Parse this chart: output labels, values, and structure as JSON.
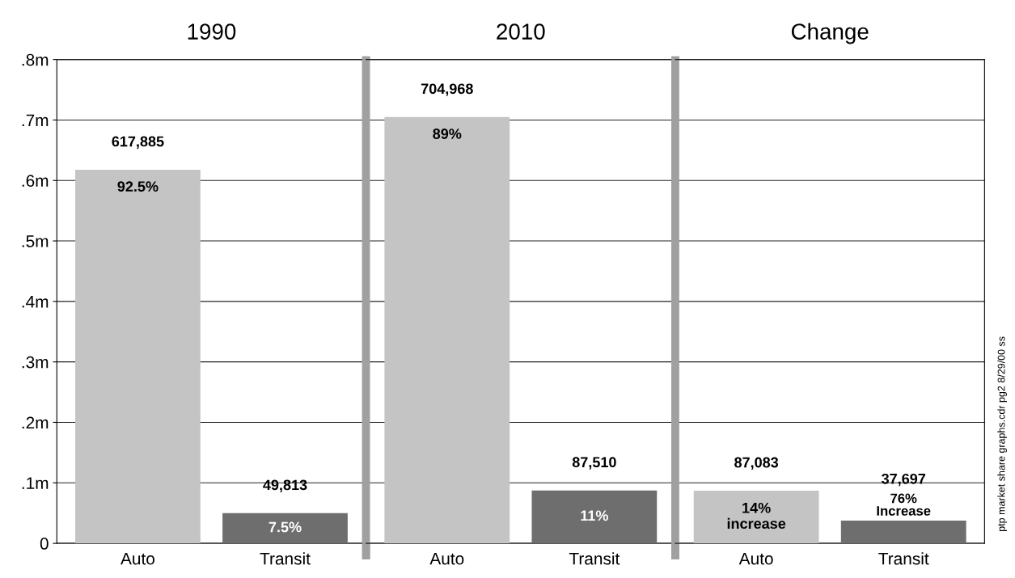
{
  "chart_data": [
    {
      "type": "bar",
      "title": "1990",
      "categories": [
        "Auto",
        "Transit"
      ],
      "values": [
        617885,
        49813
      ],
      "colors": [
        "#c4c4c4",
        "#6e6e6e"
      ],
      "value_labels": [
        "617,885",
        "49,813"
      ],
      "ylim": [
        0,
        800000
      ],
      "yticks": [
        0,
        {
          "value": 100000,
          "label": ".1m"
        },
        {
          "value": 200000,
          "label": ".2m"
        },
        {
          "value": 300000,
          "label": ".3m"
        },
        {
          "value": 400000,
          "label": ".4m"
        },
        {
          "value": 500000,
          "label": ".5m"
        },
        {
          "value": 600000,
          "label": ".6m"
        },
        {
          "value": 700000,
          "label": ".7m"
        },
        {
          "value": 800000,
          "label": ".8m"
        }
      ],
      "grid": "y",
      "annotations": [
        "92.5%",
        "7.5%"
      ]
    },
    {
      "type": "bar",
      "title": "2010",
      "categories": [
        "Auto",
        "Transit"
      ],
      "values": [
        704968,
        87510
      ],
      "colors": [
        "#c4c4c4",
        "#6e6e6e"
      ],
      "value_labels": [
        "704,968",
        "87,510"
      ],
      "ylim": [
        0,
        800000
      ],
      "grid": "y",
      "tick_labels": "x",
      "annotations": [
        "89%",
        "11%"
      ]
    },
    {
      "type": "bar",
      "title": "Change",
      "categories": [
        "Auto",
        "Transit"
      ],
      "values": [
        87083,
        37697
      ],
      "colors": [
        "#c4c4c4",
        "#6e6e6e"
      ],
      "value_labels": [
        "87,083",
        "37,697"
      ],
      "ylim": [
        0,
        800000
      ],
      "grid": "y",
      "tick_labels": "x",
      "annotations": [
        "14%\nincrease",
        "76%\nIncrease",
        "ptp market share graphs.cdr pg2 8/29/00 ss"
      ]
    }
  ]
}
